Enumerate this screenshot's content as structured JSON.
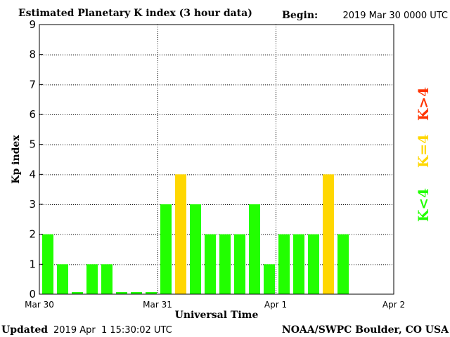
{
  "header": {
    "title": "Estimated Planetary K index (3 hour data)",
    "begin_label": "Begin:",
    "begin_value": "2019 Mar 30 0000 UTC"
  },
  "footer": {
    "updated_label": "Updated",
    "updated_value": "2019 Apr  1 15:30:02 UTC",
    "source": "NOAA/SWPC Boulder, CO USA"
  },
  "legend": {
    "high": "K>4",
    "equal": "K=4",
    "low": "K<4"
  },
  "colors": {
    "low": "#22ff00",
    "equal": "#ffd700",
    "high": "#ff3300",
    "axis": "#000000"
  },
  "chart_data": {
    "type": "bar",
    "title": "Estimated Planetary K index (3 hour data)",
    "xlabel": "Universal Time",
    "ylabel": "Kp index",
    "ylim": [
      0,
      9
    ],
    "yticks": [
      0,
      1,
      2,
      3,
      4,
      5,
      6,
      7,
      8,
      9
    ],
    "xticks": [
      "Mar 30",
      "Mar 31",
      "Apr 1",
      "Apr 2"
    ],
    "grid": "dotted",
    "interval_hours": 3,
    "categories": [
      "Mar 30 00",
      "Mar 30 03",
      "Mar 30 06",
      "Mar 30 09",
      "Mar 30 12",
      "Mar 30 15",
      "Mar 30 18",
      "Mar 30 21",
      "Mar 31 00",
      "Mar 31 03",
      "Mar 31 06",
      "Mar 31 09",
      "Mar 31 12",
      "Mar 31 15",
      "Mar 31 18",
      "Mar 31 21",
      "Apr 1 00",
      "Apr 1 03",
      "Apr 1 06",
      "Apr 1 09",
      "Apr 1 12"
    ],
    "values": [
      2,
      1,
      0.07,
      1,
      1,
      0.07,
      0.07,
      0.07,
      3,
      4,
      3,
      2,
      2,
      2,
      3,
      1,
      2,
      2,
      2,
      4,
      2
    ]
  }
}
